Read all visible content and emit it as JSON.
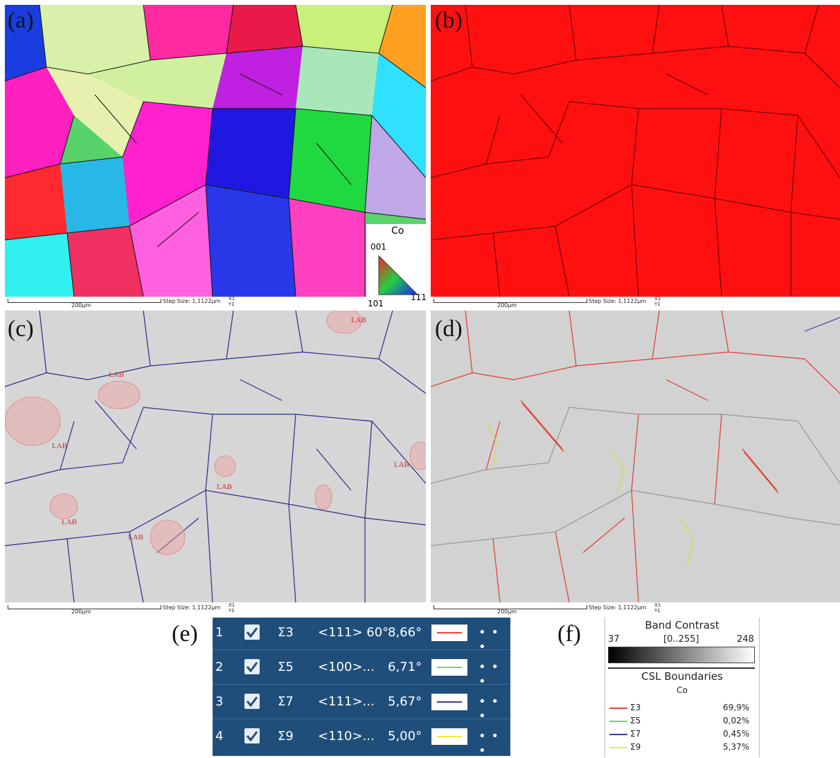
{
  "panels": {
    "a": {
      "label": "(a)"
    },
    "b": {
      "label": "(b)"
    },
    "c": {
      "label": "(c)",
      "lab_label": "LAB"
    },
    "d": {
      "label": "(d)"
    },
    "e": {
      "label": "(e)"
    },
    "f": {
      "label": "(f)"
    }
  },
  "ipf_legend": {
    "phase": "Co",
    "corner_001": "001",
    "corner_101": "101",
    "corner_111": "111"
  },
  "scale_bar": {
    "length": "200μm",
    "step_size": "Step Size: 1,1122μm",
    "axes": "X1 Y1"
  },
  "csl_table": {
    "rows": [
      {
        "index": "1",
        "sigma": "Σ3",
        "axis": "<111> 60°",
        "value": "8,66°",
        "color": "#e8413a"
      },
      {
        "index": "2",
        "sigma": "Σ5",
        "axis": "<100>...",
        "value": "6,71°",
        "color": "#5ee05e"
      },
      {
        "index": "3",
        "sigma": "Σ7",
        "axis": "<111>...",
        "value": "5,67°",
        "color": "#3a3aa8"
      },
      {
        "index": "4",
        "sigma": "Σ9",
        "axis": "<110>...",
        "value": "5,00°",
        "color": "#e8e84a"
      }
    ],
    "more": "• • •"
  },
  "band_contrast": {
    "title": "Band Contrast",
    "min": "37",
    "range": "[0..255]",
    "max": "248",
    "csl_title": "CSL Boundaries",
    "phase": "Co",
    "entries": [
      {
        "sigma": "Σ3",
        "percent": "69,9%",
        "color": "#e8413a"
      },
      {
        "sigma": "Σ5",
        "percent": "0,02%",
        "color": "#5ee05e"
      },
      {
        "sigma": "Σ7",
        "percent": "0,45%",
        "color": "#3a3aa8"
      },
      {
        "sigma": "Σ9",
        "percent": "5,37%",
        "color": "#e8e84a"
      }
    ]
  }
}
